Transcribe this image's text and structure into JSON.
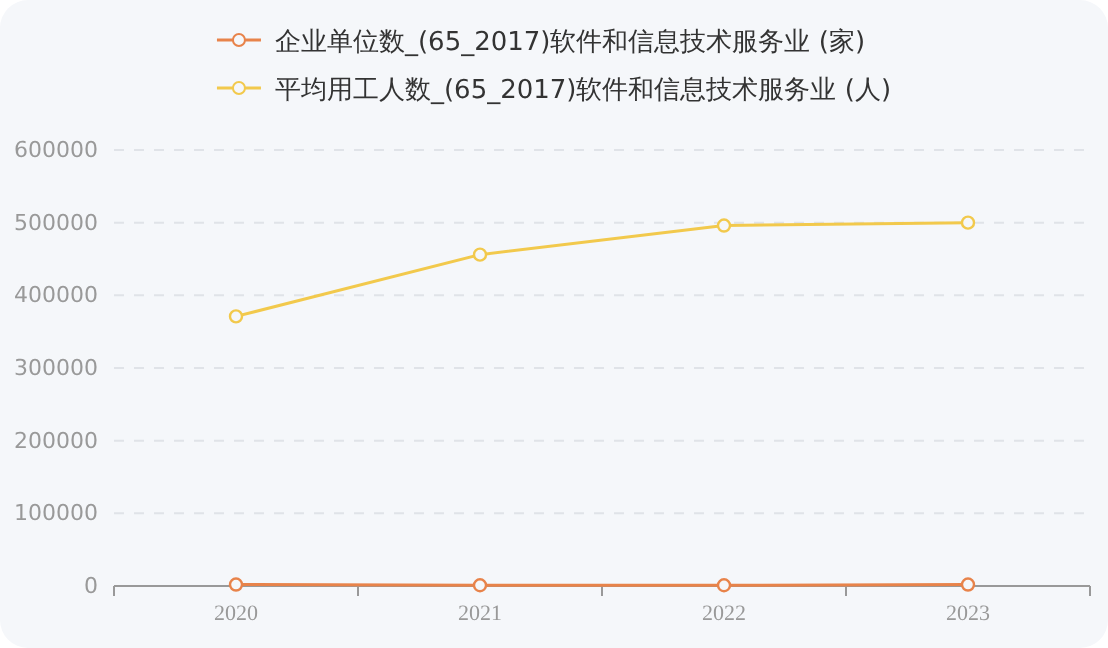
{
  "chart_data": {
    "type": "line",
    "categories": [
      "2020",
      "2021",
      "2022",
      "2023"
    ],
    "series": [
      {
        "name": "企业单位数_(65_2017)软件和信息技术服务业 (家)",
        "color": "#e8834a",
        "values": [
          2000,
          1000,
          1000,
          2000
        ]
      },
      {
        "name": "平均用工人数_(65_2017)软件和信息技术服务业 (人)",
        "color": "#f2c94c",
        "values": [
          371000,
          456000,
          496000,
          500000
        ]
      }
    ],
    "ylim": [
      0,
      600000
    ],
    "yticks": [
      0,
      100000,
      200000,
      300000,
      400000,
      500000,
      600000
    ],
    "grid": "y",
    "legend": "top",
    "marker": "circle",
    "line_style": "solid"
  }
}
